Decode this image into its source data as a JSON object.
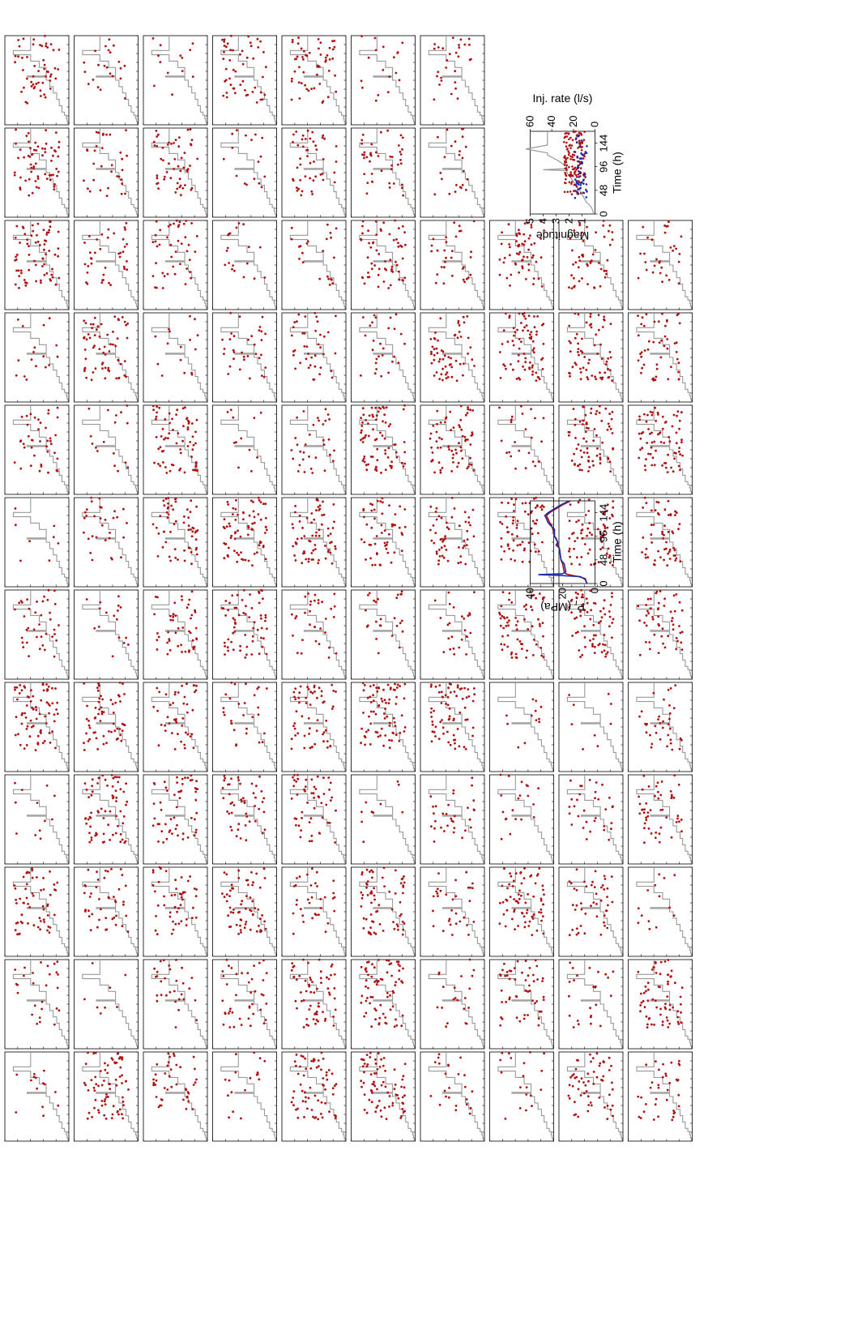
{
  "figure": {
    "background": "#ffffff",
    "layout": "rotated-90",
    "grid_rows": 10,
    "grid_cols": 12
  },
  "colors": {
    "event_dot": "#b01010",
    "magnitude_dot": "#1a2aa8",
    "injection_line": "#999999",
    "pressure_model": "#b01010",
    "pressure_observed": "#1a2aa8",
    "axis": "#000000"
  },
  "chart_data": [
    {
      "type": "scatter",
      "description_role": "event-grid",
      "series": [
        {
          "name": "",
          "kind": "seismic events"
        },
        {
          "name": "",
          "kind": "injection rate history"
        }
      ],
      "x_range": [
        0,
        168
      ],
      "grid": false
    },
    {
      "type": "scatter",
      "title": "",
      "xlabel": "Time (h)",
      "ylabel": "Magnitude",
      "y2label": "Inj. rate (l/s)",
      "xlim": [
        0,
        168
      ],
      "ylim": [
        0,
        5
      ],
      "y2lim": [
        0,
        60
      ],
      "x_ticks": [
        "0",
        "48",
        "96",
        "144"
      ],
      "y_ticks": [
        "1",
        "2",
        "3",
        "4",
        "5"
      ],
      "y2_ticks": [
        "0",
        "20",
        "40",
        "60"
      ],
      "series": [
        {
          "name": "",
          "role": "all events",
          "color": "#b01010"
        },
        {
          "name": "",
          "role": "selected events",
          "color": "#1a2aa8"
        },
        {
          "name": "",
          "role": "injection rate",
          "color": "#999999"
        }
      ],
      "injection_rate": {
        "t": [
          0,
          6,
          12,
          18,
          24,
          36,
          48,
          60,
          72,
          84,
          88,
          90,
          92,
          96,
          108,
          120,
          124,
          132,
          140,
          168
        ],
        "q": [
          1,
          2,
          3,
          5,
          8,
          11,
          14,
          18,
          22,
          26,
          26,
          48,
          26,
          26,
          34,
          44,
          44,
          64,
          44,
          44
        ]
      }
    },
    {
      "type": "line",
      "title": "",
      "xlabel": "Time (h)",
      "ylabel": "P",
      "ylabel_sub": "r",
      "ylabel_unit": " (MPa)",
      "xlim": [
        0,
        168
      ],
      "ylim": [
        0,
        40
      ],
      "x_ticks": [
        "0",
        "48",
        "96",
        "144"
      ],
      "y_ticks": [
        "0",
        "20",
        "40"
      ],
      "series": [
        {
          "name": "",
          "color": "#b01010",
          "x": [
            0,
            10,
            14,
            18,
            20,
            24,
            40,
            48,
            72,
            78,
            84,
            92,
            96,
            110,
            120,
            124,
            132,
            138,
            144,
            152,
            160,
            168
          ],
          "y": [
            5,
            6,
            10,
            16,
            18,
            19,
            20,
            21,
            22,
            23,
            23,
            24,
            25,
            26,
            27,
            28,
            29,
            30,
            28,
            24,
            20,
            15
          ]
        },
        {
          "name": "",
          "color": "#1a2aa8",
          "x": [
            0,
            8,
            14,
            17,
            18,
            20,
            24,
            40,
            48,
            72,
            78,
            84,
            96,
            110,
            120,
            124,
            132,
            138,
            144,
            152,
            160,
            168
          ],
          "y": [
            5,
            6,
            9,
            25,
            35,
            20,
            18,
            19,
            21,
            22,
            24,
            23,
            25,
            25,
            28,
            29,
            30,
            31,
            29,
            25,
            21,
            16
          ]
        }
      ]
    }
  ]
}
